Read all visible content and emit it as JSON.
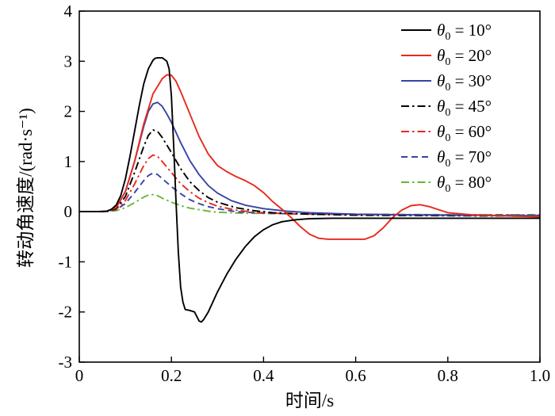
{
  "figure": {
    "background": "#ffffff"
  },
  "chart_data": {
    "type": "line",
    "title": "",
    "xlabel": "时间/s",
    "ylabel": "转动角速度/(rad·s⁻¹)",
    "xlim": [
      0,
      1.0
    ],
    "ylim": [
      -3,
      4
    ],
    "x_ticks": [
      0,
      0.2,
      0.4,
      0.6,
      0.8,
      1.0
    ],
    "x_tick_labels": [
      "0",
      "0.2",
      "0.4",
      "0.6",
      "0.8",
      "1.0"
    ],
    "y_ticks": [
      -3,
      -2,
      -1,
      0,
      1,
      2,
      3,
      4
    ],
    "y_tick_labels": [
      "-3",
      "-2",
      "-1",
      "0",
      "1",
      "2",
      "3",
      "4"
    ],
    "grid": false,
    "legend_position": "top-right-inside",
    "legend_items": [
      {
        "symbol": "θ",
        "sub": "0",
        "rest": "= 10°"
      },
      {
        "symbol": "θ",
        "sub": "0",
        "rest": "= 20°"
      },
      {
        "symbol": "θ",
        "sub": "0",
        "rest": "= 30°"
      },
      {
        "symbol": "θ",
        "sub": "0",
        "rest": "= 45°"
      },
      {
        "symbol": "θ",
        "sub": "0",
        "rest": "= 60°"
      },
      {
        "symbol": "θ",
        "sub": "0",
        "rest": "= 70°"
      },
      {
        "symbol": "θ",
        "sub": "0",
        "rest": "= 80°"
      }
    ],
    "series": [
      {
        "id": "10",
        "name": "θ₀ = 10°",
        "color": "#000000",
        "style": "solid",
        "points": [
          [
            0,
            0
          ],
          [
            0.03,
            0
          ],
          [
            0.05,
            0
          ],
          [
            0.06,
            0.01
          ],
          [
            0.07,
            0.05
          ],
          [
            0.08,
            0.13
          ],
          [
            0.09,
            0.32
          ],
          [
            0.1,
            0.65
          ],
          [
            0.11,
            1.1
          ],
          [
            0.12,
            1.6
          ],
          [
            0.13,
            2.1
          ],
          [
            0.14,
            2.55
          ],
          [
            0.15,
            2.85
          ],
          [
            0.16,
            3.02
          ],
          [
            0.165,
            3.06
          ],
          [
            0.17,
            3.07
          ],
          [
            0.18,
            3.07
          ],
          [
            0.19,
            3.0
          ],
          [
            0.195,
            2.85
          ],
          [
            0.2,
            2.3
          ],
          [
            0.205,
            1.3
          ],
          [
            0.21,
            0.2
          ],
          [
            0.215,
            -0.8
          ],
          [
            0.22,
            -1.5
          ],
          [
            0.225,
            -1.8
          ],
          [
            0.23,
            -1.95
          ],
          [
            0.24,
            -1.97
          ],
          [
            0.25,
            -2.0
          ],
          [
            0.26,
            -2.18
          ],
          [
            0.265,
            -2.2
          ],
          [
            0.27,
            -2.15
          ],
          [
            0.28,
            -2.0
          ],
          [
            0.3,
            -1.6
          ],
          [
            0.32,
            -1.25
          ],
          [
            0.34,
            -0.95
          ],
          [
            0.36,
            -0.7
          ],
          [
            0.38,
            -0.5
          ],
          [
            0.4,
            -0.36
          ],
          [
            0.42,
            -0.26
          ],
          [
            0.44,
            -0.2
          ],
          [
            0.47,
            -0.16
          ],
          [
            0.5,
            -0.14
          ],
          [
            0.55,
            -0.13
          ],
          [
            0.6,
            -0.13
          ],
          [
            0.7,
            -0.13
          ],
          [
            0.8,
            -0.13
          ],
          [
            0.9,
            -0.13
          ],
          [
            1.0,
            -0.13
          ]
        ]
      },
      {
        "id": "20",
        "name": "θ₀ = 20°",
        "color": "#e8291c",
        "style": "solid",
        "points": [
          [
            0,
            0
          ],
          [
            0.04,
            0
          ],
          [
            0.06,
            0.01
          ],
          [
            0.08,
            0.08
          ],
          [
            0.1,
            0.4
          ],
          [
            0.12,
            1.0
          ],
          [
            0.14,
            1.75
          ],
          [
            0.16,
            2.35
          ],
          [
            0.18,
            2.65
          ],
          [
            0.19,
            2.73
          ],
          [
            0.2,
            2.72
          ],
          [
            0.21,
            2.6
          ],
          [
            0.22,
            2.4
          ],
          [
            0.24,
            1.95
          ],
          [
            0.26,
            1.5
          ],
          [
            0.28,
            1.15
          ],
          [
            0.3,
            0.92
          ],
          [
            0.32,
            0.8
          ],
          [
            0.34,
            0.7
          ],
          [
            0.36,
            0.62
          ],
          [
            0.38,
            0.52
          ],
          [
            0.4,
            0.38
          ],
          [
            0.42,
            0.2
          ],
          [
            0.44,
            0.05
          ],
          [
            0.46,
            -0.12
          ],
          [
            0.48,
            -0.3
          ],
          [
            0.5,
            -0.45
          ],
          [
            0.52,
            -0.53
          ],
          [
            0.54,
            -0.55
          ],
          [
            0.58,
            -0.55
          ],
          [
            0.62,
            -0.55
          ],
          [
            0.64,
            -0.48
          ],
          [
            0.66,
            -0.32
          ],
          [
            0.68,
            -0.12
          ],
          [
            0.7,
            0.03
          ],
          [
            0.72,
            0.12
          ],
          [
            0.74,
            0.14
          ],
          [
            0.76,
            0.1
          ],
          [
            0.78,
            0.04
          ],
          [
            0.8,
            -0.02
          ],
          [
            0.85,
            -0.06
          ],
          [
            0.9,
            -0.08
          ],
          [
            1.0,
            -0.1
          ]
        ]
      },
      {
        "id": "30",
        "name": "θ₀ = 30°",
        "color": "#3743a6",
        "style": "solid",
        "points": [
          [
            0,
            0
          ],
          [
            0.04,
            0
          ],
          [
            0.06,
            0.01
          ],
          [
            0.08,
            0.08
          ],
          [
            0.1,
            0.4
          ],
          [
            0.12,
            1.0
          ],
          [
            0.14,
            1.7
          ],
          [
            0.15,
            2.0
          ],
          [
            0.16,
            2.15
          ],
          [
            0.17,
            2.18
          ],
          [
            0.18,
            2.1
          ],
          [
            0.19,
            1.95
          ],
          [
            0.2,
            1.78
          ],
          [
            0.22,
            1.38
          ],
          [
            0.24,
            1.02
          ],
          [
            0.26,
            0.74
          ],
          [
            0.28,
            0.52
          ],
          [
            0.3,
            0.37
          ],
          [
            0.33,
            0.22
          ],
          [
            0.36,
            0.13
          ],
          [
            0.4,
            0.06
          ],
          [
            0.45,
            0.01
          ],
          [
            0.5,
            -0.02
          ],
          [
            0.6,
            -0.05
          ],
          [
            0.7,
            -0.06
          ],
          [
            0.8,
            -0.07
          ],
          [
            1.0,
            -0.08
          ]
        ]
      },
      {
        "id": "45",
        "name": "θ₀ = 45°",
        "color": "#000000",
        "style": "dashdot",
        "points": [
          [
            0,
            0
          ],
          [
            0.04,
            0
          ],
          [
            0.06,
            0.01
          ],
          [
            0.08,
            0.06
          ],
          [
            0.1,
            0.3
          ],
          [
            0.12,
            0.78
          ],
          [
            0.14,
            1.3
          ],
          [
            0.15,
            1.52
          ],
          [
            0.16,
            1.63
          ],
          [
            0.17,
            1.6
          ],
          [
            0.18,
            1.48
          ],
          [
            0.2,
            1.18
          ],
          [
            0.22,
            0.86
          ],
          [
            0.24,
            0.6
          ],
          [
            0.26,
            0.42
          ],
          [
            0.28,
            0.28
          ],
          [
            0.3,
            0.19
          ],
          [
            0.34,
            0.08
          ],
          [
            0.38,
            0.02
          ],
          [
            0.42,
            -0.02
          ],
          [
            0.5,
            -0.05
          ],
          [
            0.6,
            -0.07
          ],
          [
            0.8,
            -0.08
          ],
          [
            1.0,
            -0.09
          ]
        ]
      },
      {
        "id": "60",
        "name": "θ₀ = 60°",
        "color": "#e8291c",
        "style": "dashdot",
        "points": [
          [
            0,
            0
          ],
          [
            0.04,
            0
          ],
          [
            0.06,
            0.01
          ],
          [
            0.08,
            0.05
          ],
          [
            0.1,
            0.22
          ],
          [
            0.12,
            0.55
          ],
          [
            0.14,
            0.92
          ],
          [
            0.15,
            1.06
          ],
          [
            0.16,
            1.13
          ],
          [
            0.17,
            1.1
          ],
          [
            0.18,
            1.0
          ],
          [
            0.2,
            0.78
          ],
          [
            0.22,
            0.56
          ],
          [
            0.24,
            0.4
          ],
          [
            0.26,
            0.27
          ],
          [
            0.28,
            0.18
          ],
          [
            0.3,
            0.11
          ],
          [
            0.34,
            0.03
          ],
          [
            0.38,
            -0.01
          ],
          [
            0.45,
            -0.04
          ],
          [
            0.6,
            -0.06
          ],
          [
            0.8,
            -0.07
          ],
          [
            1.0,
            -0.08
          ]
        ]
      },
      {
        "id": "70",
        "name": "θ₀ = 70°",
        "color": "#3743a6",
        "style": "dashed",
        "points": [
          [
            0,
            0
          ],
          [
            0.04,
            0
          ],
          [
            0.06,
            0.01
          ],
          [
            0.08,
            0.04
          ],
          [
            0.1,
            0.16
          ],
          [
            0.12,
            0.38
          ],
          [
            0.14,
            0.62
          ],
          [
            0.15,
            0.72
          ],
          [
            0.16,
            0.77
          ],
          [
            0.17,
            0.74
          ],
          [
            0.18,
            0.66
          ],
          [
            0.2,
            0.5
          ],
          [
            0.22,
            0.36
          ],
          [
            0.24,
            0.24
          ],
          [
            0.26,
            0.16
          ],
          [
            0.28,
            0.1
          ],
          [
            0.3,
            0.06
          ],
          [
            0.34,
            0.0
          ],
          [
            0.4,
            -0.03
          ],
          [
            0.5,
            -0.05
          ],
          [
            0.7,
            -0.06
          ],
          [
            1.0,
            -0.07
          ]
        ]
      },
      {
        "id": "80",
        "name": "θ₀ = 80°",
        "color": "#6ab52f",
        "style": "dashdot",
        "points": [
          [
            0,
            0
          ],
          [
            0.04,
            0
          ],
          [
            0.06,
            0.0
          ],
          [
            0.08,
            0.02
          ],
          [
            0.1,
            0.08
          ],
          [
            0.12,
            0.18
          ],
          [
            0.14,
            0.29
          ],
          [
            0.15,
            0.33
          ],
          [
            0.16,
            0.34
          ],
          [
            0.17,
            0.32
          ],
          [
            0.18,
            0.27
          ],
          [
            0.2,
            0.19
          ],
          [
            0.22,
            0.12
          ],
          [
            0.24,
            0.07
          ],
          [
            0.26,
            0.04
          ],
          [
            0.28,
            0.01
          ],
          [
            0.3,
            -0.01
          ],
          [
            0.35,
            -0.03
          ],
          [
            0.45,
            -0.04
          ],
          [
            0.6,
            -0.05
          ],
          [
            0.8,
            -0.06
          ],
          [
            1.0,
            -0.06
          ]
        ]
      }
    ]
  }
}
